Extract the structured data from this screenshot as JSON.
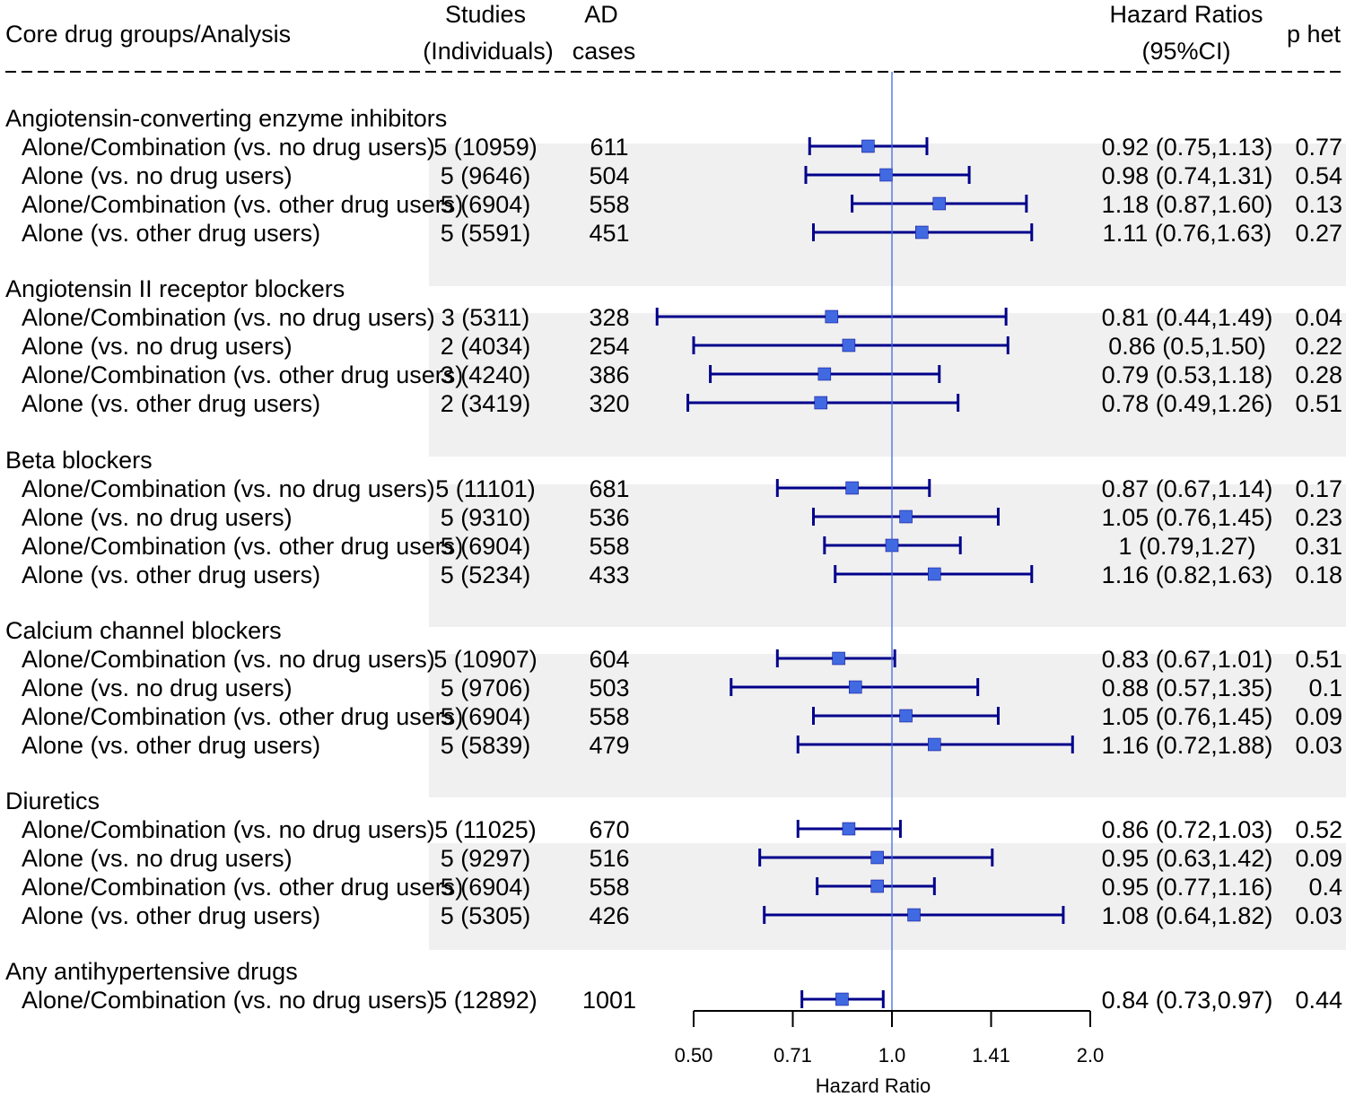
{
  "chart_data": {
    "type": "forest",
    "scale": "log2",
    "xlabel": "Hazard Ratio",
    "xlim": [
      0.5,
      2.0
    ],
    "ref_line": 1.0,
    "ticks": [
      {
        "value": 0.5,
        "label": "0.50"
      },
      {
        "value": 0.7071,
        "label": "0.71"
      },
      {
        "value": 1.0,
        "label": "1.0"
      },
      {
        "value": 1.4142,
        "label": "1.41"
      },
      {
        "value": 2.0,
        "label": "2.0"
      }
    ],
    "headers": {
      "analysis": "Core drug groups/Analysis",
      "studies_1": "Studies",
      "studies_2": "(Individuals)",
      "ad_1": "AD",
      "ad_2": "cases",
      "hr_1": "Hazard Ratios",
      "hr_2": "(95%CI)",
      "phet": "p het"
    },
    "groups": [
      {
        "name": "Angiotensin-converting enzyme inhibitors",
        "rows": [
          {
            "label": "Alone/Combination (vs. no drug users)",
            "studies": "5 (10959)",
            "cases": "611",
            "hr": 0.92,
            "lo": 0.75,
            "hi": 1.13,
            "ci_text": "0.92 (0.75,1.13)",
            "phet": "0.77"
          },
          {
            "label": "Alone (vs. no drug users)",
            "studies": "5 (9646)",
            "cases": "504",
            "hr": 0.98,
            "lo": 0.74,
            "hi": 1.31,
            "ci_text": "0.98 (0.74,1.31)",
            "phet": "0.54"
          },
          {
            "label": "Alone/Combination (vs. other drug users)",
            "studies": "5 (6904)",
            "cases": "558",
            "hr": 1.18,
            "lo": 0.87,
            "hi": 1.6,
            "ci_text": "1.18 (0.87,1.60)",
            "phet": "0.13"
          },
          {
            "label": "Alone (vs. other drug users)",
            "studies": "5 (5591)",
            "cases": "451",
            "hr": 1.11,
            "lo": 0.76,
            "hi": 1.63,
            "ci_text": "1.11 (0.76,1.63)",
            "phet": "0.27"
          }
        ]
      },
      {
        "name": "Angiotensin II receptor blockers",
        "rows": [
          {
            "label": "Alone/Combination (vs. no drug users)",
            "studies": "3 (5311)",
            "cases": "328",
            "hr": 0.81,
            "lo": 0.44,
            "hi": 1.49,
            "ci_text": "0.81 (0.44,1.49)",
            "phet": "0.04"
          },
          {
            "label": "Alone (vs. no drug users)",
            "studies": "2 (4034)",
            "cases": "254",
            "hr": 0.86,
            "lo": 0.5,
            "hi": 1.5,
            "ci_text": "0.86 (0.5,1.50)",
            "phet": "0.22"
          },
          {
            "label": "Alone/Combination (vs. other drug users)",
            "studies": "3 (4240)",
            "cases": "386",
            "hr": 0.79,
            "lo": 0.53,
            "hi": 1.18,
            "ci_text": "0.79 (0.53,1.18)",
            "phet": "0.28"
          },
          {
            "label": "Alone (vs. other drug users)",
            "studies": "2 (3419)",
            "cases": "320",
            "hr": 0.78,
            "lo": 0.49,
            "hi": 1.26,
            "ci_text": "0.78 (0.49,1.26)",
            "phet": "0.51"
          }
        ]
      },
      {
        "name": "Beta blockers",
        "rows": [
          {
            "label": "Alone/Combination (vs. no drug users)",
            "studies": "5 (11101)",
            "cases": "681",
            "hr": 0.87,
            "lo": 0.67,
            "hi": 1.14,
            "ci_text": "0.87 (0.67,1.14)",
            "phet": "0.17"
          },
          {
            "label": "Alone (vs. no drug users)",
            "studies": "5 (9310)",
            "cases": "536",
            "hr": 1.05,
            "lo": 0.76,
            "hi": 1.45,
            "ci_text": "1.05 (0.76,1.45)",
            "phet": "0.23"
          },
          {
            "label": "Alone/Combination (vs. other drug users)",
            "studies": "5 (6904)",
            "cases": "558",
            "hr": 1.0,
            "lo": 0.79,
            "hi": 1.27,
            "ci_text": "1 (0.79,1.27)",
            "phet": "0.31"
          },
          {
            "label": "Alone (vs. other drug users)",
            "studies": "5 (5234)",
            "cases": "433",
            "hr": 1.16,
            "lo": 0.82,
            "hi": 1.63,
            "ci_text": "1.16 (0.82,1.63)",
            "phet": "0.18"
          }
        ]
      },
      {
        "name": "Calcium channel blockers",
        "rows": [
          {
            "label": "Alone/Combination (vs. no drug users)",
            "studies": "5 (10907)",
            "cases": "604",
            "hr": 0.83,
            "lo": 0.67,
            "hi": 1.01,
            "ci_text": "0.83 (0.67,1.01)",
            "phet": "0.51"
          },
          {
            "label": "Alone (vs. no drug users)",
            "studies": "5 (9706)",
            "cases": "503",
            "hr": 0.88,
            "lo": 0.57,
            "hi": 1.35,
            "ci_text": "0.88 (0.57,1.35)",
            "phet": "0.1"
          },
          {
            "label": "Alone/Combination (vs. other drug users)",
            "studies": "5 (6904)",
            "cases": "558",
            "hr": 1.05,
            "lo": 0.76,
            "hi": 1.45,
            "ci_text": "1.05 (0.76,1.45)",
            "phet": "0.09"
          },
          {
            "label": "Alone (vs. other drug users)",
            "studies": "5 (5839)",
            "cases": "479",
            "hr": 1.16,
            "lo": 0.72,
            "hi": 1.88,
            "ci_text": "1.16 (0.72,1.88)",
            "phet": "0.03"
          }
        ]
      },
      {
        "name": "Diuretics",
        "rows": [
          {
            "label": "Alone/Combination (vs. no drug users)",
            "studies": "5 (11025)",
            "cases": "670",
            "hr": 0.86,
            "lo": 0.72,
            "hi": 1.03,
            "ci_text": "0.86 (0.72,1.03)",
            "phet": "0.52"
          },
          {
            "label": "Alone (vs. no drug users)",
            "studies": "5 (9297)",
            "cases": "516",
            "hr": 0.95,
            "lo": 0.63,
            "hi": 1.42,
            "ci_text": "0.95 (0.63,1.42)",
            "phet": "0.09"
          },
          {
            "label": "Alone/Combination (vs. other drug users)",
            "studies": "5 (6904)",
            "cases": "558",
            "hr": 0.95,
            "lo": 0.77,
            "hi": 1.16,
            "ci_text": "0.95 (0.77,1.16)",
            "phet": "0.4"
          },
          {
            "label": "Alone (vs. other drug users)",
            "studies": "5 (5305)",
            "cases": "426",
            "hr": 1.08,
            "lo": 0.64,
            "hi": 1.82,
            "ci_text": "1.08 (0.64,1.82)",
            "phet": "0.03"
          }
        ]
      },
      {
        "name": "Any antihypertensive drugs",
        "rows": [
          {
            "label": "Alone/Combination (vs. no drug users)",
            "studies": "5 (12892)",
            "cases": "1001",
            "hr": 0.84,
            "lo": 0.73,
            "hi": 0.97,
            "ci_text": "0.84 (0.73,0.97)",
            "phet": "0.44"
          }
        ]
      }
    ],
    "colors": {
      "ci": "#00008b",
      "point": "#4169e1",
      "ref": "#4169e1",
      "band": "#f0f0f0"
    }
  }
}
